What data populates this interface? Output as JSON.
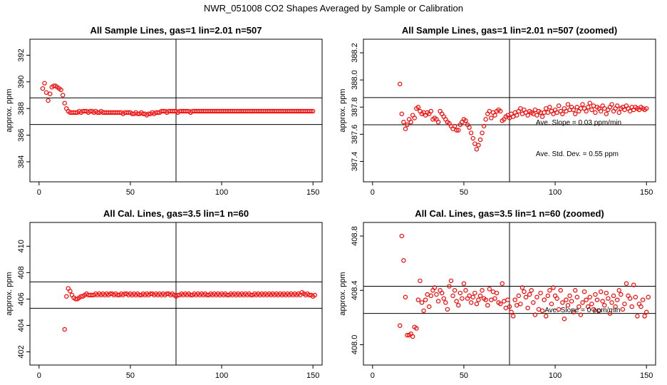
{
  "page": {
    "title": "NWR_051008  CO2 Shapes Averaged by Sample or Calibration"
  },
  "chart_data": [
    {
      "type": "scatter",
      "title": "All Sample Lines, gas=1 lin=2.01 n=507",
      "ylabel": "approx. ppm",
      "xlabel": "",
      "xlim": [
        -5,
        155
      ],
      "ylim": [
        382.5,
        393.2
      ],
      "xticks": [
        0,
        50,
        100,
        150
      ],
      "yticks": [
        384,
        386,
        388,
        390,
        392
      ],
      "vline": 75,
      "hlines": [
        386.8,
        388.8
      ],
      "annotations": [],
      "x_start": 2,
      "x_step": 1,
      "values": [
        389.5,
        389.9,
        389.2,
        388.6,
        389.1,
        389.6,
        389.7,
        389.7,
        389.6,
        389.5,
        389.4,
        389.0,
        388.4,
        388.0,
        387.8,
        387.7,
        387.7,
        387.7,
        387.7,
        387.7,
        387.8,
        387.7,
        387.8,
        387.8,
        387.8,
        387.7,
        387.8,
        387.8,
        387.7,
        387.8,
        387.7,
        387.7,
        387.8,
        387.7,
        387.7,
        387.7,
        387.7,
        387.7,
        387.7,
        387.7,
        387.7,
        387.7,
        387.7,
        387.7,
        387.6,
        387.7,
        387.7,
        387.7,
        387.7,
        387.6,
        387.6,
        387.7,
        387.6,
        387.6,
        387.7,
        387.6,
        387.6,
        387.5,
        387.6,
        387.6,
        387.7,
        387.6,
        387.7,
        387.7,
        387.7,
        387.8,
        387.8,
        387.8,
        387.7,
        387.8,
        387.8,
        387.8,
        387.8,
        387.8,
        387.7,
        387.8,
        387.8,
        387.8,
        387.8,
        387.8,
        387.8,
        387.7,
        387.8,
        387.8,
        387.8,
        387.8,
        387.8,
        387.8,
        387.8,
        387.8,
        387.8,
        387.8,
        387.8,
        387.8,
        387.8,
        387.8,
        387.8,
        387.8,
        387.8,
        387.8,
        387.8,
        387.8,
        387.8,
        387.8,
        387.8,
        387.8,
        387.8,
        387.8,
        387.8,
        387.8,
        387.8,
        387.8,
        387.8,
        387.8,
        387.8,
        387.8,
        387.8,
        387.8,
        387.8,
        387.8,
        387.8,
        387.8,
        387.8,
        387.8,
        387.8,
        387.8,
        387.8,
        387.8,
        387.8,
        387.8,
        387.8,
        387.8,
        387.8,
        387.8,
        387.8,
        387.8,
        387.8,
        387.8,
        387.8,
        387.8,
        387.8,
        387.8,
        387.8,
        387.8,
        387.8,
        387.8,
        387.8,
        387.8,
        387.8
      ]
    },
    {
      "type": "scatter",
      "title": "All Sample Lines, gas=1 lin=2.01 n=507 (zoomed)",
      "ylabel": "approx. ppm",
      "xlabel": "",
      "xlim": [
        -5,
        155
      ],
      "ylim": [
        387.25,
        388.3
      ],
      "xticks": [
        0,
        50,
        100,
        150
      ],
      "yticks": [
        387.4,
        387.6,
        387.8,
        388.0,
        388.2
      ],
      "vline": 75,
      "hlines": [
        387.67,
        387.87
      ],
      "annotations": [
        "Ave. Slope =  0.03  ppm/min",
        "Ave. Std. Dev. =  0.55  ppm"
      ],
      "x_start": 15,
      "x_step": 1,
      "values": [
        387.97,
        387.75,
        387.69,
        387.64,
        387.67,
        387.71,
        387.69,
        387.74,
        387.72,
        387.79,
        387.8,
        387.77,
        387.75,
        387.76,
        387.74,
        387.76,
        387.75,
        387.77,
        387.71,
        387.72,
        387.71,
        387.69,
        387.77,
        387.75,
        387.73,
        387.71,
        387.69,
        387.68,
        387.66,
        387.64,
        387.66,
        387.63,
        387.63,
        387.67,
        387.69,
        387.71,
        387.7,
        387.67,
        387.65,
        387.61,
        387.57,
        387.53,
        387.49,
        387.52,
        387.56,
        387.61,
        387.66,
        387.71,
        387.75,
        387.77,
        387.72,
        387.76,
        387.74,
        387.77,
        387.78,
        387.77,
        387.7,
        387.71,
        387.73,
        387.74,
        387.72,
        387.75,
        387.73,
        387.76,
        387.74,
        387.77,
        387.79,
        387.75,
        387.78,
        387.76,
        387.74,
        387.77,
        387.76,
        387.75,
        387.78,
        387.74,
        387.77,
        387.76,
        387.73,
        387.76,
        387.79,
        387.76,
        387.8,
        387.77,
        387.75,
        387.78,
        387.76,
        387.81,
        387.77,
        387.75,
        387.79,
        387.77,
        387.82,
        387.78,
        387.8,
        387.78,
        387.75,
        387.8,
        387.77,
        387.79,
        387.82,
        387.79,
        387.77,
        387.8,
        387.83,
        387.78,
        387.81,
        387.76,
        387.8,
        387.79,
        387.77,
        387.81,
        387.79,
        387.75,
        387.78,
        387.8,
        387.82,
        387.77,
        387.79,
        387.81,
        387.76,
        387.79,
        387.8,
        387.78,
        387.81,
        387.79,
        387.77,
        387.8,
        387.78,
        387.8,
        387.79,
        387.78,
        387.8,
        387.79,
        387.78,
        387.79
      ]
    },
    {
      "type": "scatter",
      "title": "All Cal. Lines, gas=3.5 lin=1 n=60",
      "ylabel": "approx. ppm",
      "xlabel": "",
      "xlim": [
        -5,
        155
      ],
      "ylim": [
        401,
        411.8
      ],
      "xticks": [
        0,
        50,
        100,
        150
      ],
      "yticks": [
        402,
        404,
        406,
        408,
        410
      ],
      "vline": 75,
      "hlines": [
        405.3,
        407.3
      ],
      "annotations": [],
      "x_start": 14,
      "x_step": 1,
      "values": [
        403.7,
        406.2,
        406.8,
        406.6,
        406.3,
        406.1,
        406.0,
        406.0,
        406.1,
        406.2,
        406.2,
        406.3,
        406.4,
        406.3,
        406.3,
        406.3,
        406.3,
        406.4,
        406.3,
        406.4,
        406.3,
        406.4,
        406.3,
        406.4,
        406.3,
        406.4,
        406.4,
        406.3,
        406.4,
        406.3,
        406.3,
        406.4,
        406.3,
        406.4,
        406.4,
        406.3,
        406.4,
        406.3,
        406.4,
        406.3,
        406.4,
        406.3,
        406.3,
        406.4,
        406.3,
        406.4,
        406.3,
        406.4,
        406.4,
        406.3,
        406.4,
        406.3,
        406.4,
        406.3,
        406.4,
        406.3,
        406.4,
        406.4,
        406.3,
        406.4,
        406.3,
        406.2,
        406.3,
        406.3,
        406.4,
        406.3,
        406.4,
        406.3,
        406.4,
        406.3,
        406.3,
        406.4,
        406.3,
        406.4,
        406.3,
        406.4,
        406.3,
        406.4,
        406.3,
        406.3,
        406.4,
        406.3,
        406.4,
        406.3,
        406.4,
        406.3,
        406.4,
        406.3,
        406.4,
        406.3,
        406.3,
        406.4,
        406.3,
        406.4,
        406.3,
        406.4,
        406.3,
        406.4,
        406.3,
        406.4,
        406.3,
        406.4,
        406.3,
        406.3,
        406.4,
        406.3,
        406.4,
        406.3,
        406.4,
        406.3,
        406.4,
        406.3,
        406.4,
        406.3,
        406.4,
        406.3,
        406.4,
        406.3,
        406.4,
        406.3,
        406.4,
        406.3,
        406.4,
        406.3,
        406.4,
        406.3,
        406.4,
        406.3,
        406.4,
        406.3,
        406.5,
        406.4,
        406.3,
        406.4,
        406.3,
        406.3,
        406.2,
        406.3
      ]
    },
    {
      "type": "scatter",
      "title": "All Cal. Lines, gas=3.5 lin=1 n=60 (zoomed)",
      "ylabel": "approx. ppm",
      "xlabel": "",
      "xlim": [
        -5,
        155
      ],
      "ylim": [
        407.85,
        408.9
      ],
      "xticks": [
        0,
        50,
        100,
        150
      ],
      "yticks": [
        408.0,
        408.4,
        408.8
      ],
      "vline": 75,
      "hlines": [
        408.23,
        408.43
      ],
      "annotations": [
        "Ave. Slope =  0  ppm/min"
      ],
      "x_start": 15,
      "x_step": 1,
      "values": [
        408.14,
        408.8,
        408.62,
        408.35,
        408.07,
        408.07,
        408.08,
        408.06,
        408.13,
        408.12,
        408.33,
        408.47,
        408.31,
        408.25,
        408.33,
        408.37,
        408.28,
        408.36,
        408.4,
        408.42,
        408.37,
        408.32,
        408.4,
        408.38,
        408.34,
        408.31,
        408.26,
        408.43,
        408.47,
        408.36,
        408.4,
        408.32,
        408.29,
        408.38,
        408.34,
        408.45,
        408.4,
        408.34,
        408.36,
        408.31,
        408.35,
        408.38,
        408.3,
        408.33,
        408.36,
        408.4,
        408.34,
        408.33,
        408.29,
        408.41,
        408.33,
        408.39,
        408.34,
        408.38,
        408.31,
        408.3,
        408.45,
        408.32,
        408.27,
        408.33,
        408.28,
        408.24,
        408.21,
        408.33,
        408.29,
        408.36,
        408.3,
        408.42,
        408.39,
        408.35,
        408.27,
        408.37,
        408.4,
        408.31,
        408.22,
        408.35,
        408.26,
        408.38,
        408.25,
        408.33,
        408.21,
        408.36,
        408.4,
        408.3,
        408.42,
        408.36,
        408.34,
        408.26,
        408.4,
        408.31,
        408.19,
        408.33,
        408.29,
        408.36,
        408.32,
        408.24,
        408.4,
        408.35,
        408.28,
        408.22,
        408.31,
        408.39,
        408.33,
        408.28,
        408.35,
        408.3,
        408.26,
        408.37,
        408.33,
        408.25,
        408.39,
        408.32,
        408.29,
        408.38,
        408.34,
        408.23,
        408.31,
        408.36,
        408.28,
        408.33,
        408.4,
        408.37,
        408.26,
        408.3,
        408.45,
        408.36,
        408.34,
        408.28,
        408.44,
        408.35,
        408.21,
        408.3,
        408.28,
        408.33,
        408.21,
        408.24,
        408.35
      ]
    }
  ]
}
